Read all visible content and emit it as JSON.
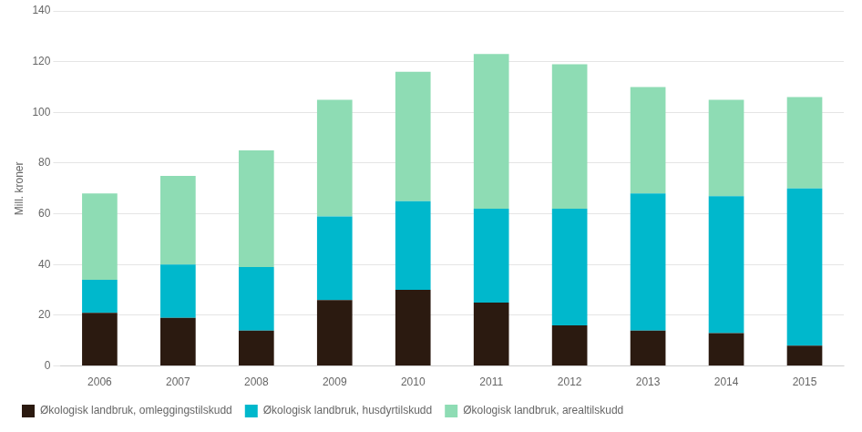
{
  "chart_data": {
    "type": "bar",
    "stacked": true,
    "categories": [
      "2006",
      "2007",
      "2008",
      "2009",
      "2010",
      "2011",
      "2012",
      "2013",
      "2014",
      "2015"
    ],
    "series": [
      {
        "name": "Økologisk landbruk, omleggingstilskudd",
        "color": "#2b1a10",
        "values": [
          21,
          19,
          14,
          26,
          30,
          25,
          16,
          14,
          13,
          8
        ]
      },
      {
        "name": "Økologisk landbruk, husdyrtilskudd",
        "color": "#00b8cc",
        "values": [
          13,
          21,
          25,
          33,
          35,
          37,
          46,
          54,
          54,
          62
        ]
      },
      {
        "name": "Økologisk landbruk, arealtilskudd",
        "color": "#8edcb4",
        "values": [
          34,
          35,
          46,
          46,
          51,
          61,
          57,
          42,
          38,
          36
        ]
      }
    ],
    "ylabel": "Mill. kroner",
    "ylim": [
      0,
      140
    ],
    "yticks": [
      0,
      20,
      40,
      60,
      80,
      100,
      120,
      140
    ],
    "grid": true,
    "legend": "bottom"
  }
}
